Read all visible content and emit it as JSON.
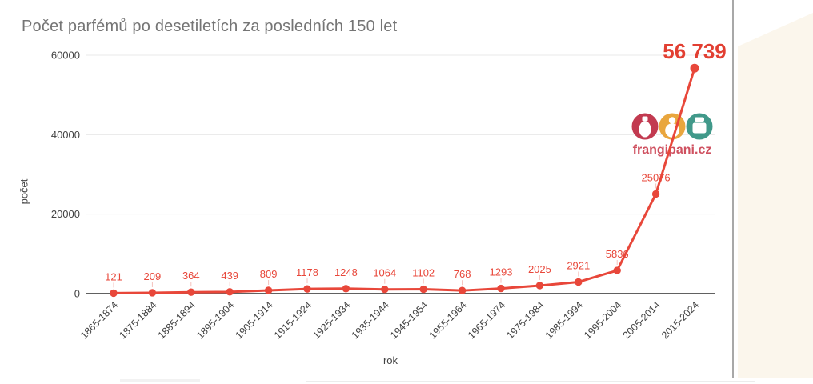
{
  "chart_data": {
    "type": "line",
    "title": "Počet parfémů po desetiletích za posledních 150 let",
    "xlabel": "rok",
    "ylabel": "počet",
    "x": [
      "1865-1874",
      "1875-1884",
      "1885-1894",
      "1895-1904",
      "1905-1914",
      "1915-1924",
      "1925-1934",
      "1935-1944",
      "1945-1954",
      "1955-1964",
      "1965-1974",
      "1975-1984",
      "1985-1994",
      "1995-2004",
      "2005-2014",
      "2015-2024"
    ],
    "values": [
      121,
      209,
      364,
      439,
      809,
      1178,
      1248,
      1064,
      1102,
      768,
      1293,
      2025,
      2921,
      5836,
      25076,
      56739
    ],
    "labels": [
      "121",
      "209",
      "364",
      "439",
      "809",
      "1178",
      "1248",
      "1064",
      "1102",
      "768",
      "1293",
      "2025",
      "2921",
      "5836",
      "25076",
      "56 739"
    ],
    "ylim": [
      0,
      60000
    ],
    "yticks": [
      0,
      20000,
      40000,
      60000
    ],
    "grid": true,
    "legend": "none",
    "line_color": "#e8473a",
    "annotation_color": "#e8473a",
    "max_annotation_color": "#e23f32"
  },
  "watermark": {
    "text": "frangipani.cz",
    "icon_colors": [
      "#c23a50",
      "#e9a63e",
      "#41998a"
    ]
  }
}
